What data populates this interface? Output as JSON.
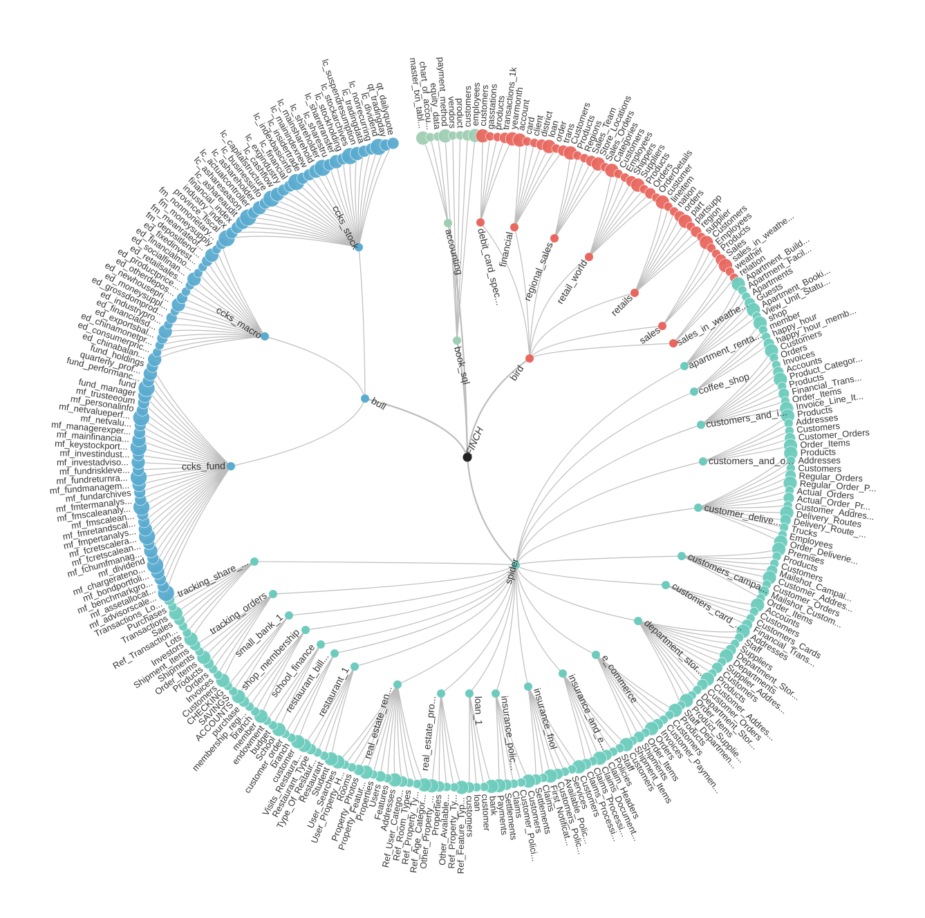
{
  "colors": {
    "red": "#e8675f",
    "blue": "#5aabcf",
    "sage": "#9ecdb2",
    "teal": "#6dcbbd",
    "root": "#222222",
    "link": "#bdbdbd",
    "text": "#333333"
  },
  "root": {
    "label": "FINCH"
  },
  "dbs": [
    {
      "id": "accounting",
      "label": "accounting",
      "color": "sage",
      "a": 8,
      "r": 50,
      "tables": [
        "master_txn_tabl...",
        "chart_of_accou...",
        "equity_data"
      ]
    },
    {
      "id": "book_sql",
      "label": "book_sql",
      "color": "sage",
      "a": 12,
      "r": 30,
      "tables": [
        "payment_method",
        "vendors",
        "product",
        "customers",
        "employees"
      ]
    },
    {
      "id": "debit_card",
      "label": "debit_card_spec...",
      "color": "red",
      "a": 22,
      "r": 48,
      "tables": [
        "customers",
        "gasstations",
        "products",
        "transactions_1k",
        "yearmonth"
      ]
    },
    {
      "id": "financial",
      "label": "financial",
      "color": "red",
      "a": 31,
      "r": 48,
      "tables": [
        "account",
        "card",
        "client",
        "district",
        "loan",
        "order",
        "trans"
      ]
    },
    {
      "id": "regional_sales",
      "label": "regional_sales",
      "color": "red",
      "a": 40,
      "r": 45,
      "tables": [
        "Customers",
        "Products",
        "Regions",
        "Sales_Team",
        "Store_Locations",
        "Sales_Orders"
      ]
    },
    {
      "id": "retail_world",
      "label": "retail_world",
      "color": "red",
      "a": 50,
      "r": 45,
      "tables": [
        "Categories",
        "Customers",
        "Employees",
        "Shippers",
        "Suppliers",
        "Products",
        "Orders",
        "OrderDetails"
      ]
    },
    {
      "id": "retails",
      "label": "retails",
      "color": "red",
      "a": 60,
      "r": 45,
      "tables": [
        "customer",
        "lineitem",
        "nation",
        "orders",
        "part",
        "partsupp",
        "region",
        "supplier"
      ]
    },
    {
      "id": "sales",
      "label": "sales",
      "color": "red",
      "a": 71,
      "r": 45,
      "tables": [
        "Customers",
        "Employees",
        "Products",
        "Sales"
      ]
    },
    {
      "id": "bird",
      "label": "bird",
      "color": "red",
      "a": 35,
      "r": 42,
      "hub": true
    },
    {
      "id": "sales_in_weather",
      "label": "sales_in_weathe...",
      "color": "red",
      "a": 76,
      "r": 45,
      "tables": [
        "sales_in_weathe...",
        "weather",
        "relation"
      ]
    },
    {
      "id": "apartment",
      "label": "apartment_renta...",
      "color": "teal",
      "a": 82,
      "r": 45,
      "tables": [
        "Apartment_Build...",
        "Apartment_Facil...",
        "Apartments",
        "Guests",
        "Apartment_Booki...",
        "View_Unit_Statu..."
      ]
    },
    {
      "id": "coffee_shop",
      "label": "coffee_shop",
      "color": "teal",
      "a": 87,
      "r": 45,
      "tables": [
        "shop",
        "member",
        "happy_hour",
        "happy_hour_memb..."
      ]
    },
    {
      "id": "customers_and_i",
      "label": "customers_and_i...",
      "color": "teal",
      "a": 93,
      "r": 45,
      "tables": [
        "Customers",
        "Orders",
        "Invoices",
        "Accounts",
        "Product_Categor...",
        "Products",
        "Financial_Trans...",
        "Order_Items",
        "Invoice_Line_It..."
      ]
    },
    {
      "id": "customers_and_o",
      "label": "customers_and_o...",
      "color": "teal",
      "a": 99,
      "r": 45,
      "tables": [
        "Products",
        "Addresses",
        "Customers",
        "Customer_Orders",
        "Order_Items"
      ]
    },
    {
      "id": "customer_deliv",
      "label": "customer_delive...",
      "color": "teal",
      "a": 106,
      "r": 45,
      "tables": [
        "Products",
        "Addresses",
        "Customers",
        "Regular_Orders",
        "Regular_Order_P...",
        "Actual_Orders",
        "Actual_Order_Pr...",
        "Customer_Addres...",
        "Delivery_Routes",
        "Delivery_Route_...",
        "Trucks",
        "Employees",
        "Order_Deliverie..."
      ]
    },
    {
      "id": "customers_campa",
      "label": "customers_campa...",
      "color": "teal",
      "a": 112,
      "r": 45,
      "tables": [
        "Premises",
        "Products",
        "Customers",
        "Mailshot_Campai...",
        "Customer_Addres...",
        "Customer_Orders",
        "Mailshot_Custom...",
        "Order_Items"
      ]
    },
    {
      "id": "customers_card",
      "label": "customers_card_...",
      "color": "teal",
      "a": 118,
      "r": 45,
      "tables": [
        "Accounts",
        "Customers",
        "Customers_Cards",
        "Financial_Trans..."
      ]
    },
    {
      "id": "department_store",
      "label": "department_stor...",
      "color": "teal",
      "a": 125,
      "r": 45,
      "tables": [
        "Addresses",
        "Staff",
        "Suppliers",
        "Department_Stor...",
        "Departments",
        "Supplier_Addres...",
        "Customers",
        "Products",
        "Customer_Addres...",
        "Customer_Orders",
        "Department_Stor...",
        "Order_Items",
        "Product_Supplie...",
        "Staff_Departmen..."
      ]
    },
    {
      "id": "e_commerce",
      "label": "e_commerce",
      "color": "teal",
      "a": 135,
      "r": 45,
      "tables": [
        "Products",
        "Customers",
        "Customer_Paymen...",
        "Invoices",
        "Orders",
        "Order_Items",
        "Shipments",
        "Shipment_Items"
      ]
    },
    {
      "id": "insurance_and_e",
      "label": "insurance_and_e...",
      "color": "teal",
      "a": 143,
      "r": 45,
      "tables": [
        "Customers",
        "Staff",
        "Policies",
        "Claim_Headers",
        "Claims_Document...",
        "Claims_Processi...",
        "Claims_Processi..."
      ]
    },
    {
      "id": "insurance_fnol",
      "label": "insurance_fnol",
      "color": "teal",
      "a": 152,
      "r": 45,
      "tables": [
        "Customers",
        "Services",
        "Available_Polic...",
        "Customers_Polic...",
        "First_Notificat...",
        "Claims",
        "Settlements"
      ]
    },
    {
      "id": "insurance_polic",
      "label": "insurance_polic...",
      "color": "teal",
      "a": 160,
      "r": 45,
      "tables": [
        "Customers",
        "Customer_Polici...",
        "Claims",
        "Settlements",
        "Payments"
      ]
    },
    {
      "id": "loan_1",
      "label": "loan_1",
      "color": "teal",
      "a": 168,
      "r": 45,
      "tables": [
        "bank",
        "customer",
        "loan",
        "customers"
      ]
    },
    {
      "id": "real_estate_pro",
      "label": "real_estate_pro...",
      "color": "teal",
      "a": 176,
      "r": 45,
      "tables": [
        "Ref_Feature_Typ...",
        "Ref_Property_Ty...",
        "Other_Available...",
        "Properties",
        "Other_Property_..."
      ]
    },
    {
      "id": "real_estate_ren",
      "label": "real_estate_ren...",
      "color": "teal",
      "a": 186,
      "r": 45,
      "tables": [
        "Ref_Age_Categor...",
        "Ref_Property_Ty...",
        "Ref_Room_Types",
        "Ref_User_Catego...",
        "Addresses",
        "Features",
        "Users",
        "Properties",
        "Property_Featur...",
        "Property_Photos",
        "Rooms",
        "User_Property_H...",
        "User_Searches"
      ]
    },
    {
      "id": "restaurant_1",
      "label": "restaurant_1",
      "color": "teal",
      "a": 198,
      "r": 45,
      "tables": [
        "Student",
        "Restaurant",
        "Type_Of_Restaur...",
        "Restaurant_Type",
        "Visits_Restaura..."
      ]
    },
    {
      "id": "restaurant_bill",
      "label": "restaurant_bill...",
      "color": "teal",
      "a": 205,
      "r": 45,
      "tables": [
        "customer",
        "branch",
        "customer_order"
      ]
    },
    {
      "id": "school_finance",
      "label": "school_finance",
      "color": "teal",
      "a": 211,
      "r": 45,
      "tables": [
        "School",
        "budget",
        "endowment"
      ]
    },
    {
      "id": "shop_membership",
      "label": "shop_membership",
      "color": "teal",
      "a": 217,
      "r": 45,
      "tables": [
        "member",
        "branch",
        "membership_regi...",
        "purchase"
      ]
    },
    {
      "id": "small_bank_1",
      "label": "small_bank_1",
      "color": "teal",
      "a": 223,
      "r": 45,
      "tables": [
        "ACCOUNTS",
        "SAVINGS",
        "CHECKING"
      ]
    },
    {
      "id": "tracking_orders",
      "label": "tracking_orders",
      "color": "teal",
      "a": 229,
      "r": 45,
      "tables": [
        "Customers",
        "Invoices",
        "Orders",
        "Products",
        "Order_Items",
        "Shipments",
        "Shipment_Items"
      ]
    },
    {
      "id": "tracking_share",
      "label": "tracking_share_...",
      "color": "teal",
      "a": 235,
      "r": 45,
      "tables": [
        "Investors",
        "Lots",
        "Ref_Transaction...",
        "Sales",
        "Transactions",
        "Purchases",
        "Transactions_Lo..."
      ]
    },
    {
      "id": "spider",
      "label": "spider",
      "color": "teal",
      "a": 148,
      "r": 25,
      "hub": true
    },
    {
      "id": "ccks_fund",
      "label": "ccks_fund",
      "color": "blue",
      "a": 262,
      "r": 62,
      "tables": [
        "mf_advisorscale...",
        "mf_assetallocat...",
        "mf_benchmarkgro...",
        "mf_bondportfoli...",
        "mf_chargerateno...",
        "mf_dividend",
        "mf_fchumfmanag...",
        "mf_fcretscalean...",
        "mf_fcretscalera...",
        "mf_fmpertanalys...",
        "mf_fmretandscal...",
        "mf_fmscalean...",
        "mf_fmscaleanaly...",
        "mf_fmtermanalys...",
        "mf_fundarchives",
        "mf_fundmanagem...",
        "mf_fundreturnra...",
        "mf_fundriskleve...",
        "mf_investadviso...",
        "mf_investindust...",
        "mf_keystockport...",
        "mf_mainfinancia...",
        "mf_managerexper...",
        "mf_netvalu...",
        "mf_netvalueperf...",
        "mf_personalinfo",
        "mf_trusteeoum",
        "fund_manager",
        "fund",
        "fund_performanc...",
        "quarterly_prof...",
        "fund_holdings"
      ]
    },
    {
      "id": "ccks_macro",
      "label": "ccks_macro",
      "color": "blue",
      "a": 292,
      "r": 54,
      "tables": [
        "ed_chinabalan...",
        "ed_consumerpric...",
        "ed_chinamonetpr...",
        "ed_exportsbal...",
        "ed_financialsd...",
        "ed_industrypro...",
        "ed_grossdomprod...",
        "ed_moneysuppl...",
        "ed_newhousepri...",
        "ed_otherdepos...",
        "ed_productprice...",
        "ed_retailsales...",
        "ed_socialfinan...",
        "ed_financialmo...",
        "ed_fixedinvest...",
        "fm_depositlend...",
        "fm_meanrateof...",
        "fm_moneysupply",
        "fm_nonmonetary..."
      ]
    },
    {
      "id": "ccks_stock",
      "label": "ccks_stock",
      "color": "blue",
      "a": 330,
      "r": 54,
      "tables": [
        "province_fiscal",
        "industry_index",
        "financial_index",
        "lc_ashareaudit",
        "lc_ashareseason",
        "lc_actualcontroller",
        "lc_ashareholder",
        "lc_businessinfo",
        "lc_capitalstructure",
        "lc_cashflow",
        "lc_exgindustry",
        "lc_financial",
        "lc_indexbasicinfo",
        "lc_insidertrade",
        "lc_mainindexnew",
        "lc_mainsharehold",
        "lc_shareholder",
        "lc_sharestru",
        "lc_sharetransfer",
        "lc_stockholding",
        "lc_stockarchives",
        "lc_suspendresumption",
        "lc_tradingdata",
        "lc_nonrecurring",
        "lc_dividend",
        "qt_tradingday",
        "qt_dailyquote"
      ]
    },
    {
      "id": "bull",
      "label": "bull",
      "color": "blue",
      "a": 302,
      "r": 25,
      "hub": true
    }
  ]
}
